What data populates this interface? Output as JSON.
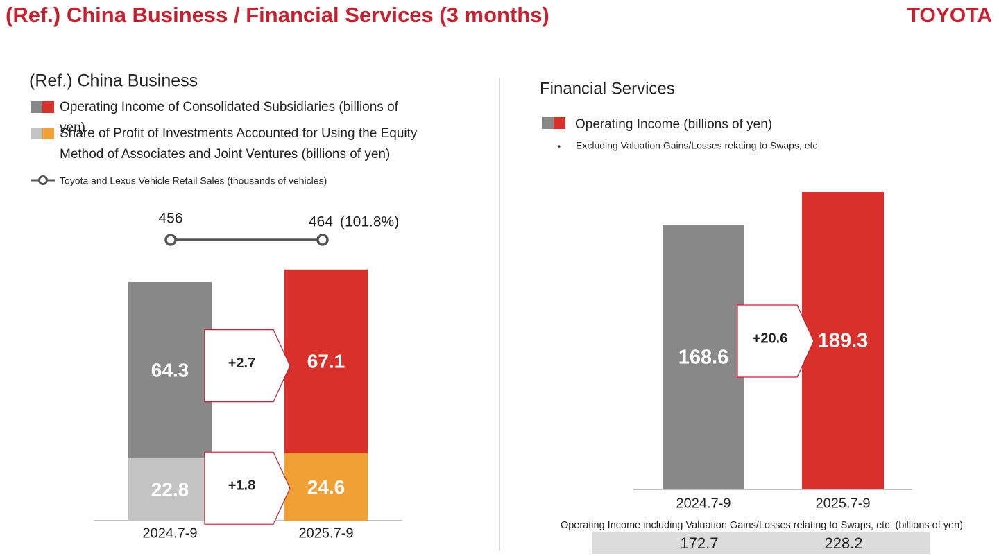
{
  "title": "(Ref.) China Business / Financial Services (3 months)",
  "logo": "TOYOTA",
  "chart_data": [
    {
      "type": "stacked_bar",
      "title": "(Ref.) China Business",
      "categories": [
        "2024.7-9",
        "2025.7-9"
      ],
      "series": [
        {
          "name": "Operating Income of Consolidated Subsidiaries (billions of yen)",
          "colors": [
            "#888888",
            "#d9302c"
          ],
          "values": [
            64.3,
            67.1
          ],
          "change": "+2.7"
        },
        {
          "name": "Share of Profit of Investments Accounted for Using the Equity Method of Associates and Joint Ventures (billions of yen)",
          "colors": [
            "#c3c3c3",
            "#f0a035"
          ],
          "values": [
            22.8,
            24.6
          ],
          "change": "+1.8"
        }
      ],
      "line": {
        "name": "Toyota and Lexus Vehicle Retail Sales (thousands of vehicles)",
        "color": "#555555",
        "values": [
          456,
          464
        ],
        "ratio_label": "(101.8%)"
      }
    },
    {
      "type": "bar",
      "title": "Financial Services",
      "categories": [
        "2024.7-9",
        "2025.7-9"
      ],
      "series": [
        {
          "name": "Operating Income (billions of yen)",
          "colors": [
            "#888888",
            "#d9302c"
          ],
          "values": [
            168.6,
            189.3
          ],
          "change": "+20.6"
        }
      ],
      "note_marker": "*",
      "note": "Excluding Valuation Gains/Losses relating to Swaps, etc.",
      "footer": {
        "label": "Operating Income including Valuation Gains/Losses relating to Swaps, etc.  (billions of yen)",
        "values": [
          172.7,
          228.2
        ]
      }
    }
  ]
}
